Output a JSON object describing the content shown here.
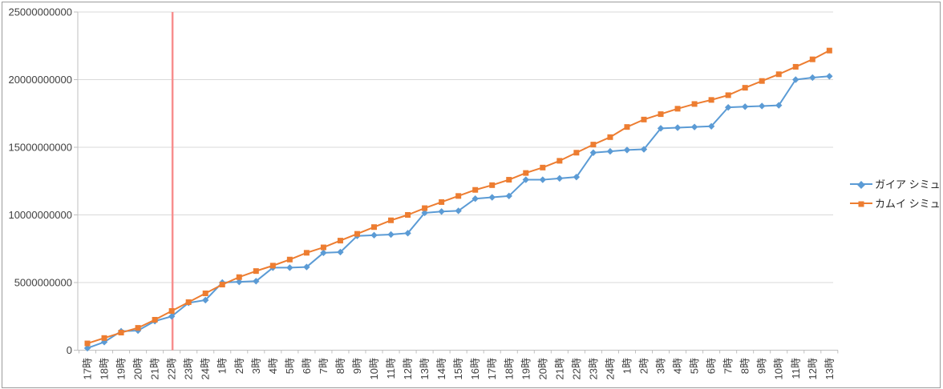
{
  "chart_data": {
    "type": "line",
    "title": "",
    "xlabel": "",
    "ylabel": "",
    "categories": [
      "17時",
      "18時",
      "19時",
      "20時",
      "21時",
      "22時",
      "23時",
      "24時",
      "1時",
      "2時",
      "3時",
      "4時",
      "5時",
      "6時",
      "7時",
      "8時",
      "9時",
      "10時",
      "11時",
      "12時",
      "13時",
      "14時",
      "15時",
      "16時",
      "17時",
      "18時",
      "19時",
      "20時",
      "21時",
      "22時",
      "23時",
      "24時",
      "1時",
      "2時",
      "3時",
      "4時",
      "5時",
      "6時",
      "7時",
      "8時",
      "9時",
      "10時",
      "11時",
      "12時",
      "13時"
    ],
    "series": [
      {
        "name": "ガイア シミュ",
        "color": "#5B9BD5",
        "marker": "diamond",
        "values": [
          150000000,
          600000000,
          1400000000,
          1450000000,
          2150000000,
          2500000000,
          3500000000,
          3700000000,
          5000000000,
          5050000000,
          5100000000,
          6100000000,
          6100000000,
          6150000000,
          7200000000,
          7250000000,
          8450000000,
          8500000000,
          8550000000,
          8650000000,
          10150000000,
          10250000000,
          10300000000,
          11200000000,
          11300000000,
          11400000000,
          12600000000,
          12600000000,
          12700000000,
          12800000000,
          14600000000,
          14700000000,
          14800000000,
          14850000000,
          16400000000,
          16450000000,
          16500000000,
          16550000000,
          17950000000,
          18000000000,
          18050000000,
          18100000000,
          20000000000,
          20150000000,
          20250000000
        ]
      },
      {
        "name": "カムイ シミュ",
        "color": "#ED7D31",
        "marker": "square",
        "values": [
          500000000,
          900000000,
          1300000000,
          1650000000,
          2250000000,
          2900000000,
          3550000000,
          4200000000,
          4850000000,
          5400000000,
          5850000000,
          6250000000,
          6700000000,
          7200000000,
          7600000000,
          8100000000,
          8600000000,
          9100000000,
          9600000000,
          10000000000,
          10500000000,
          10950000000,
          11400000000,
          11850000000,
          12200000000,
          12600000000,
          13100000000,
          13500000000,
          14000000000,
          14600000000,
          15200000000,
          15750000000,
          16500000000,
          17050000000,
          17450000000,
          17850000000,
          18200000000,
          18500000000,
          18850000000,
          19400000000,
          19900000000,
          20400000000,
          20950000000,
          21500000000,
          22150000000
        ]
      }
    ],
    "ylim": [
      0,
      25000000000
    ],
    "ytick_interval": 5000000000,
    "ytick_labels": [
      "0",
      "5000000000",
      "10000000000",
      "15000000000",
      "20000000000",
      "25000000000"
    ],
    "grid": "horizontal",
    "legend_position": "right",
    "annotations": [
      {
        "type": "vline",
        "category_index": 5,
        "category": "22時",
        "color": "#F88E8E"
      }
    ]
  },
  "legend": {
    "items": [
      {
        "label": "ガイア シミュ"
      },
      {
        "label": "カムイ シミュ"
      }
    ]
  },
  "colors": {
    "series1": "#5B9BD5",
    "series2": "#ED7D31",
    "vline": "#F88E8E",
    "gridline": "#D9D9D9",
    "axis": "#BFBFBF",
    "axis_text": "#404040",
    "border": "#9B9B9B"
  }
}
